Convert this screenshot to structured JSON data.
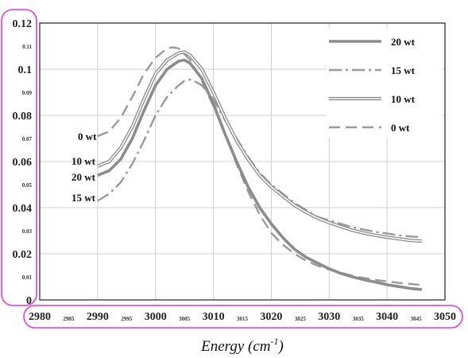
{
  "chart_data": {
    "type": "line",
    "title": "",
    "xlabel": "Energy (cm",
    "xlabel_sup": "-1",
    "xlabel_end": ")",
    "ylabel": "",
    "xlim": [
      2980,
      3050
    ],
    "ylim": [
      0,
      0.12
    ],
    "grid": true,
    "legend_position": "top-right",
    "x_major_ticks": [
      "2980",
      "2990",
      "3000",
      "3010",
      "3020",
      "3030",
      "3040",
      "3050"
    ],
    "x_minor_ticks": [
      "2985",
      "2995",
      "3005",
      "3015",
      "3025",
      "3035",
      "3045"
    ],
    "y_major_ticks": [
      "0",
      "0.02",
      "0.04",
      "0.06",
      "0.08",
      "0.1",
      "0.12"
    ],
    "y_minor_ticks": [
      "0.01",
      "0.03",
      "0.05",
      "0.07",
      "0.09",
      "0.11"
    ],
    "series": [
      {
        "name": "20 wt",
        "style": "thick-solid",
        "color": "#888888",
        "x": [
          2990,
          2992,
          2994,
          2996,
          2998,
          3000,
          3002,
          3004,
          3005,
          3006,
          3008,
          3010,
          3012,
          3014,
          3016,
          3018,
          3020,
          3022,
          3024,
          3026,
          3028,
          3030,
          3032,
          3034,
          3036,
          3038,
          3040,
          3042,
          3044,
          3046
        ],
        "y": [
          0.054,
          0.056,
          0.061,
          0.07,
          0.082,
          0.093,
          0.1,
          0.1035,
          0.104,
          0.1025,
          0.096,
          0.085,
          0.072,
          0.06,
          0.049,
          0.04,
          0.033,
          0.027,
          0.022,
          0.0185,
          0.016,
          0.0135,
          0.0115,
          0.01,
          0.0088,
          0.0077,
          0.0066,
          0.0058,
          0.005,
          0.0045
        ]
      },
      {
        "name": "15 wt",
        "style": "dash-dot",
        "color": "#888888",
        "x": [
          2990,
          2992,
          2994,
          2996,
          2998,
          3000,
          3002,
          3004,
          3005,
          3006,
          3007,
          3008,
          3010,
          3012,
          3014,
          3016,
          3018,
          3020,
          3022,
          3024,
          3026,
          3028,
          3030,
          3032,
          3034,
          3036,
          3038,
          3040,
          3042,
          3044,
          3046
        ],
        "y": [
          0.043,
          0.046,
          0.051,
          0.059,
          0.069,
          0.08,
          0.088,
          0.093,
          0.095,
          0.0955,
          0.0945,
          0.093,
          0.087,
          0.078,
          0.07,
          0.062,
          0.055,
          0.05,
          0.046,
          0.042,
          0.039,
          0.036,
          0.0345,
          0.033,
          0.0315,
          0.0305,
          0.0295,
          0.0288,
          0.028,
          0.0275,
          0.0272
        ]
      },
      {
        "name": "10 wt",
        "style": "double-line",
        "color": "#888888",
        "x": [
          2990,
          2992,
          2994,
          2996,
          2998,
          3000,
          3002,
          3004,
          3005,
          3006,
          3008,
          3010,
          3012,
          3014,
          3016,
          3018,
          3020,
          3022,
          3024,
          3026,
          3028,
          3030,
          3032,
          3034,
          3036,
          3038,
          3040,
          3042,
          3044,
          3046
        ],
        "y": [
          0.058,
          0.06,
          0.066,
          0.075,
          0.087,
          0.098,
          0.104,
          0.107,
          0.1075,
          0.106,
          0.1,
          0.09,
          0.079,
          0.069,
          0.061,
          0.054,
          0.049,
          0.045,
          0.041,
          0.038,
          0.0355,
          0.0335,
          0.0318,
          0.0302,
          0.029,
          0.028,
          0.0272,
          0.0265,
          0.0258,
          0.0255
        ]
      },
      {
        "name": "0 wt",
        "style": "dashed",
        "color": "#888888",
        "x": [
          2990,
          2992,
          2994,
          2996,
          2998,
          3000,
          3002,
          3003,
          3004,
          3006,
          3008,
          3010,
          3012,
          3014,
          3016,
          3018,
          3020,
          3022,
          3024,
          3026,
          3028,
          3030,
          3032,
          3034,
          3036,
          3038,
          3040,
          3042,
          3044,
          3046
        ],
        "y": [
          0.071,
          0.073,
          0.079,
          0.088,
          0.098,
          0.105,
          0.109,
          0.1095,
          0.109,
          0.104,
          0.095,
          0.084,
          0.072,
          0.059,
          0.047,
          0.037,
          0.029,
          0.024,
          0.02,
          0.017,
          0.0148,
          0.0132,
          0.0118,
          0.0105,
          0.0095,
          0.0087,
          0.008,
          0.0074,
          0.0069,
          0.0065
        ]
      }
    ],
    "inline_labels": [
      "0 wt",
      "10 wt",
      "20 wt",
      "15 wt"
    ],
    "annotation_color": "#e23ad8"
  }
}
